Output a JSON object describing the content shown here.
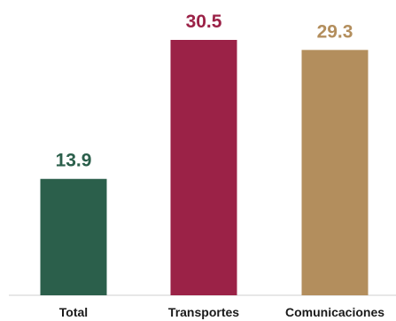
{
  "chart_data": {
    "type": "bar",
    "categories": [
      "Total",
      "Transportes",
      "Comunicaciones"
    ],
    "values": [
      13.9,
      30.5,
      29.3
    ],
    "data_labels": [
      "13.9",
      "30.5",
      "29.3"
    ],
    "colors": [
      "#2b5f4b",
      "#9b2247",
      "#b38e5d"
    ],
    "title": "",
    "xlabel": "",
    "ylabel": "",
    "ylim": [
      0,
      30.5
    ],
    "grid": false,
    "legend": "none"
  }
}
